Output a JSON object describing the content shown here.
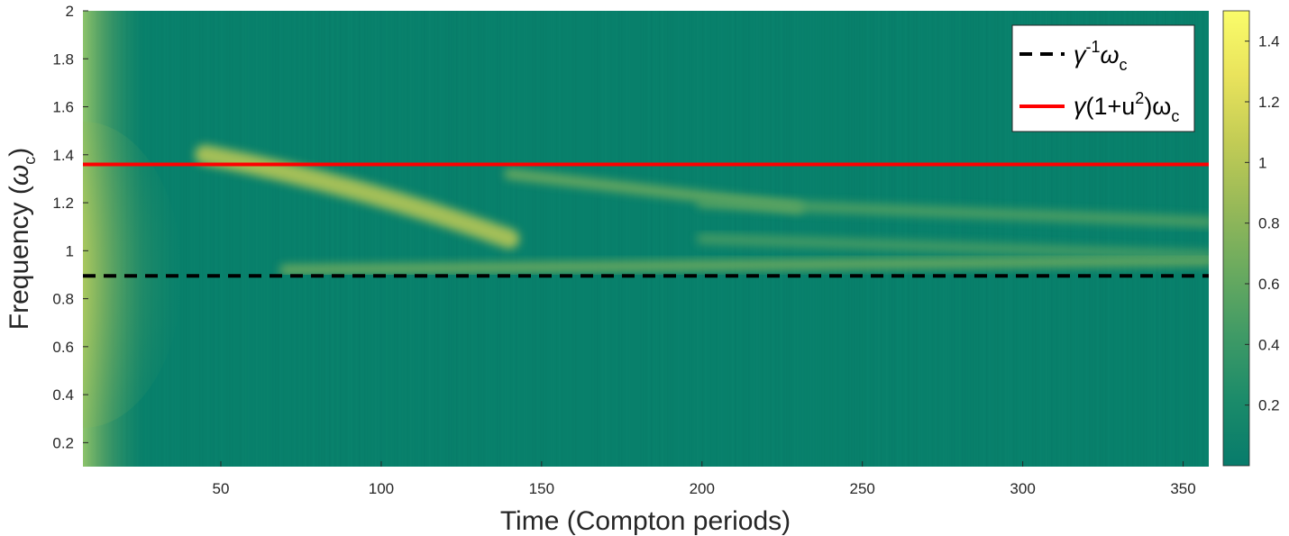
{
  "chart_data": {
    "type": "heatmap",
    "xlabel": "Time (Compton periods)",
    "ylabel_main": "Frequency (",
    "ylabel_symbol": "ω",
    "ylabel_sub": "c",
    "ylabel_close": ")",
    "xlim": [
      7,
      358
    ],
    "ylim": [
      0.1,
      2.0
    ],
    "x_ticks": [
      50,
      100,
      150,
      200,
      250,
      300,
      350
    ],
    "y_ticks": [
      0.2,
      0.4,
      0.6,
      0.8,
      1,
      1.2,
      1.4,
      1.6,
      1.8,
      2
    ],
    "colorbar": {
      "range": [
        0.0,
        1.5
      ],
      "ticks": [
        0.2,
        0.4,
        0.6,
        0.8,
        1,
        1.2,
        1.4
      ],
      "colormap": [
        "#077b6b",
        "#1b8b6a",
        "#3f9a66",
        "#6aaa5f",
        "#98b958",
        "#c3cc55",
        "#e9e35c",
        "#fafc6a"
      ]
    },
    "background_color": "#08806b",
    "reference_lines": [
      {
        "y": 0.895,
        "style": "dashed",
        "color": "#000000"
      },
      {
        "y": 1.36,
        "style": "solid",
        "color": "#ff0000"
      }
    ],
    "features": [
      {
        "kind": "band",
        "x": [
          7,
          70
        ],
        "y": [
          0.895,
          0.895
        ],
        "intensity": 1.5
      },
      {
        "kind": "band",
        "x": [
          70,
          358
        ],
        "y": [
          0.92,
          0.96
        ],
        "intensity": 0.7
      },
      {
        "kind": "band",
        "x": [
          45,
          140
        ],
        "y": [
          1.4,
          1.05
        ],
        "intensity": 1.05
      },
      {
        "kind": "band",
        "x": [
          140,
          230
        ],
        "y": [
          1.32,
          1.18
        ],
        "intensity": 0.7
      },
      {
        "kind": "band",
        "x": [
          200,
          358
        ],
        "y": [
          1.2,
          1.12
        ],
        "intensity": 0.55
      },
      {
        "kind": "band",
        "x": [
          200,
          358
        ],
        "y": [
          1.05,
          0.98
        ],
        "intensity": 0.5
      }
    ],
    "legend": {
      "placement": "top-right",
      "entries": [
        {
          "symbol": "γ",
          "sup": "-1",
          "mid": "ω",
          "sub": "c",
          "tail": "",
          "color": "#000000",
          "style": "dashed"
        },
        {
          "symbol": "γ",
          "sup": "",
          "mid": "(1+u",
          "sup2": "2",
          "mid2": ")ω",
          "sub": "c",
          "color": "#ff0000",
          "style": "solid"
        }
      ]
    }
  }
}
